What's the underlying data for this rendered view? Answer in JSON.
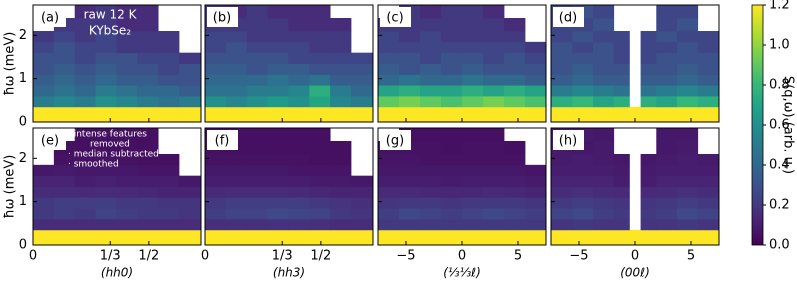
{
  "chart_data": [
    {
      "type": "heatmap",
      "label": "(a)",
      "annotations": [
        "raw 12 K",
        "KYbSe₂"
      ],
      "ylabel": "ħω (meV)",
      "xlim": [
        0,
        0.725
      ],
      "ylim": [
        0,
        2.7
      ],
      "xticks": [
        0,
        0.3333,
        0.5
      ],
      "yticks": [
        0,
        1,
        2
      ],
      "x_edges": [
        0,
        0.09,
        0.18,
        0.27,
        0.36,
        0.45,
        0.54,
        0.63,
        0.725
      ],
      "y_edges": [
        0,
        0.35,
        0.6,
        0.85,
        1.1,
        1.35,
        1.6,
        1.85,
        2.1,
        2.4,
        2.7
      ],
      "z": [
        [
          1.2,
          1.2,
          1.2,
          1.2,
          1.2,
          1.2,
          1.2,
          1.2
        ],
        [
          0.5,
          0.55,
          0.5,
          0.6,
          0.55,
          0.5,
          0.45,
          0.5
        ],
        [
          0.4,
          0.45,
          0.4,
          0.5,
          0.45,
          0.4,
          0.4,
          0.35
        ],
        [
          0.35,
          0.4,
          0.35,
          0.4,
          0.35,
          0.35,
          0.3,
          0.3
        ],
        [
          0.3,
          0.35,
          0.3,
          0.35,
          0.3,
          0.3,
          0.25,
          0.3
        ],
        [
          0.3,
          0.3,
          0.25,
          0.3,
          0.3,
          0.25,
          0.25,
          0.2
        ],
        [
          0.25,
          0.3,
          0.25,
          0.25,
          0.2,
          0.2,
          0.2,
          null
        ],
        [
          0.2,
          0.25,
          0.2,
          0.25,
          0.2,
          0.2,
          0.2,
          null
        ],
        [
          null,
          0.2,
          0.2,
          0.2,
          0.15,
          0.15,
          null,
          null
        ],
        [
          null,
          null,
          0.15,
          0.2,
          0.15,
          0.15,
          null,
          null
        ]
      ]
    },
    {
      "type": "heatmap",
      "label": "(b)",
      "xlim": [
        0,
        0.725
      ],
      "ylim": [
        0,
        2.7
      ],
      "xticks": [
        0,
        0.3333,
        0.5
      ],
      "yticks": [
        0,
        1,
        2
      ],
      "x_edges": [
        0,
        0.09,
        0.18,
        0.27,
        0.36,
        0.45,
        0.54,
        0.63,
        0.725
      ],
      "y_edges": [
        0,
        0.35,
        0.6,
        0.85,
        1.1,
        1.35,
        1.6,
        1.85,
        2.1,
        2.4,
        2.7
      ],
      "z": [
        [
          1.2,
          1.2,
          1.2,
          1.2,
          1.2,
          1.2,
          1.2,
          1.2
        ],
        [
          0.6,
          0.55,
          0.6,
          0.65,
          0.6,
          0.7,
          0.55,
          0.5
        ],
        [
          0.45,
          0.45,
          0.5,
          0.5,
          0.55,
          0.75,
          0.5,
          0.4
        ],
        [
          0.4,
          0.4,
          0.4,
          0.45,
          0.4,
          0.45,
          0.35,
          0.35
        ],
        [
          0.35,
          0.35,
          0.3,
          0.35,
          0.35,
          0.3,
          0.3,
          0.3
        ],
        [
          0.3,
          0.3,
          0.3,
          0.3,
          0.25,
          0.25,
          0.25,
          0.25
        ],
        [
          0.25,
          0.3,
          0.25,
          0.25,
          0.25,
          0.2,
          0.2,
          null
        ],
        [
          0.25,
          0.25,
          0.2,
          0.2,
          0.2,
          0.2,
          0.2,
          null
        ],
        [
          0.2,
          0.2,
          0.2,
          0.2,
          0.15,
          0.15,
          0.15,
          null
        ],
        [
          0.2,
          0.15,
          0.2,
          0.15,
          0.15,
          0.15,
          null,
          null
        ]
      ]
    },
    {
      "type": "heatmap",
      "label": "(c)",
      "xlim": [
        -7.5,
        7.5
      ],
      "ylim": [
        0,
        2.7
      ],
      "xticks": [
        -5,
        0,
        5
      ],
      "yticks": [
        0,
        1,
        2
      ],
      "x_edges": [
        -7.5,
        -5.625,
        -3.75,
        -1.875,
        0,
        1.875,
        3.75,
        5.625,
        7.5
      ],
      "y_edges": [
        0,
        0.35,
        0.6,
        0.85,
        1.1,
        1.35,
        1.6,
        1.85,
        2.1,
        2.4,
        2.7
      ],
      "z": [
        [
          1.2,
          1.2,
          1.2,
          1.2,
          1.2,
          1.2,
          1.2,
          1.2
        ],
        [
          0.9,
          0.95,
          0.9,
          0.85,
          0.9,
          0.95,
          0.9,
          0.85
        ],
        [
          0.7,
          0.75,
          0.7,
          0.7,
          0.75,
          0.7,
          0.75,
          0.7
        ],
        [
          0.4,
          0.45,
          0.4,
          0.4,
          0.45,
          0.4,
          0.4,
          0.35
        ],
        [
          0.35,
          0.3,
          0.35,
          0.3,
          0.35,
          0.3,
          0.3,
          0.3
        ],
        [
          0.3,
          0.3,
          0.25,
          0.3,
          0.3,
          0.25,
          0.3,
          0.25
        ],
        [
          0.25,
          0.25,
          0.25,
          0.25,
          0.25,
          0.25,
          0.25,
          0.2
        ],
        [
          0.25,
          0.2,
          0.25,
          0.2,
          0.2,
          0.2,
          0.2,
          null
        ],
        [
          0.2,
          0.2,
          0.2,
          0.2,
          0.2,
          0.2,
          0.15,
          null
        ],
        [
          null,
          0.2,
          0.15,
          0.2,
          0.2,
          0.15,
          null,
          null
        ]
      ]
    },
    {
      "type": "heatmap",
      "label": "(d)",
      "xlim": [
        -7.5,
        7.5
      ],
      "ylim": [
        0,
        2.7
      ],
      "xticks": [
        -5,
        0,
        5
      ],
      "yticks": [
        0,
        1,
        2
      ],
      "x_edges": [
        -7.5,
        -5.6,
        -3.75,
        -1.9,
        -0.5,
        0.5,
        1.9,
        3.75,
        5.6,
        7.5
      ],
      "y_edges": [
        0,
        0.35,
        0.6,
        0.85,
        1.1,
        1.35,
        1.6,
        1.85,
        2.1,
        2.4,
        2.7
      ],
      "z": [
        [
          1.2,
          1.2,
          1.2,
          1.2,
          1.2,
          1.2,
          1.2,
          1.2,
          1.2
        ],
        [
          0.75,
          0.8,
          0.7,
          0.75,
          null,
          0.75,
          0.7,
          0.8,
          0.75
        ],
        [
          0.5,
          0.55,
          0.5,
          0.45,
          null,
          0.45,
          0.5,
          0.55,
          0.5
        ],
        [
          0.35,
          0.4,
          0.35,
          0.35,
          null,
          0.35,
          0.35,
          0.4,
          0.35
        ],
        [
          0.3,
          0.35,
          0.3,
          0.3,
          null,
          0.3,
          0.3,
          0.35,
          0.3
        ],
        [
          0.3,
          0.3,
          0.3,
          0.25,
          null,
          0.25,
          0.3,
          0.3,
          0.3
        ],
        [
          0.3,
          0.25,
          0.3,
          0.25,
          null,
          0.25,
          0.25,
          0.3,
          0.25
        ],
        [
          0.25,
          0.3,
          0.25,
          0.25,
          null,
          0.25,
          0.3,
          0.25,
          0.25
        ],
        [
          0.25,
          0.25,
          0.3,
          null,
          null,
          null,
          0.25,
          0.3,
          null
        ],
        [
          0.25,
          0.3,
          0.25,
          null,
          null,
          null,
          0.25,
          0.25,
          null
        ]
      ]
    },
    {
      "type": "heatmap",
      "label": "(e)",
      "annotations": [
        "· intense features",
        "removed",
        "· median subtracted",
        "· smoothed"
      ],
      "ylabel": "ħω (meV)",
      "xlabel": "(hh0)",
      "xlim": [
        0,
        0.725
      ],
      "ylim": [
        0,
        2.7
      ],
      "xticks": [
        0,
        {
          "value": 0.3333,
          "label": "1/3"
        },
        {
          "value": 0.5,
          "label": "1/2"
        }
      ],
      "yticks": [
        0,
        1,
        2
      ],
      "x_edges": [
        0,
        0.09,
        0.18,
        0.27,
        0.36,
        0.45,
        0.54,
        0.63,
        0.725
      ],
      "y_edges": [
        0,
        0.35,
        0.6,
        0.85,
        1.1,
        1.35,
        1.6,
        1.85,
        2.1,
        2.4,
        2.7
      ],
      "z": [
        [
          1.2,
          1.2,
          1.2,
          1.2,
          1.2,
          1.2,
          1.2,
          1.2
        ],
        [
          0.15,
          0.15,
          0.15,
          0.15,
          0.15,
          0.15,
          0.15,
          0.15
        ],
        [
          0.2,
          0.22,
          0.2,
          0.24,
          0.22,
          0.2,
          0.2,
          0.18
        ],
        [
          0.2,
          0.22,
          0.22,
          0.22,
          0.2,
          0.2,
          0.18,
          0.18
        ],
        [
          0.15,
          0.15,
          0.14,
          0.15,
          0.14,
          0.13,
          0.12,
          0.12
        ],
        [
          0.12,
          0.12,
          0.1,
          0.11,
          0.1,
          0.1,
          0.1,
          0.08
        ],
        [
          0.08,
          0.09,
          0.08,
          0.08,
          0.08,
          0.07,
          0.07,
          null
        ],
        [
          null,
          0.06,
          0.06,
          0.06,
          0.06,
          0.05,
          0.05,
          null
        ],
        [
          null,
          0.05,
          0.05,
          0.05,
          0.05,
          0.05,
          null,
          null
        ],
        [
          null,
          null,
          0.05,
          0.05,
          0.05,
          0.05,
          null,
          null
        ]
      ]
    },
    {
      "type": "heatmap",
      "label": "(f)",
      "xlabel": "(hh3)",
      "xlim": [
        0,
        0.725
      ],
      "ylim": [
        0,
        2.7
      ],
      "xticks": [
        0,
        {
          "value": 0.3333,
          "label": "1/3"
        },
        {
          "value": 0.5,
          "label": "1/2"
        }
      ],
      "yticks": [
        0,
        1,
        2
      ],
      "x_edges": [
        0,
        0.09,
        0.18,
        0.27,
        0.36,
        0.45,
        0.54,
        0.63,
        0.725
      ],
      "y_edges": [
        0,
        0.35,
        0.6,
        0.85,
        1.1,
        1.35,
        1.6,
        1.85,
        2.1,
        2.4,
        2.7
      ],
      "z": [
        [
          1.2,
          1.2,
          1.2,
          1.2,
          1.2,
          1.2,
          1.2,
          1.2
        ],
        [
          0.16,
          0.16,
          0.16,
          0.17,
          0.17,
          0.16,
          0.15,
          0.15
        ],
        [
          0.22,
          0.24,
          0.24,
          0.26,
          0.25,
          0.24,
          0.2,
          0.18
        ],
        [
          0.2,
          0.22,
          0.22,
          0.22,
          0.22,
          0.2,
          0.18,
          0.16
        ],
        [
          0.14,
          0.15,
          0.15,
          0.15,
          0.14,
          0.13,
          0.12,
          0.12
        ],
        [
          0.1,
          0.1,
          0.1,
          0.1,
          0.1,
          0.09,
          0.09,
          0.08
        ],
        [
          0.08,
          0.08,
          0.08,
          0.08,
          0.07,
          0.07,
          0.07,
          null
        ],
        [
          0.06,
          0.06,
          0.06,
          0.06,
          0.06,
          0.05,
          0.05,
          null
        ],
        [
          0.05,
          0.05,
          0.05,
          0.05,
          0.05,
          0.05,
          0.05,
          null
        ],
        [
          0.05,
          0.05,
          0.05,
          0.05,
          0.05,
          0.05,
          null,
          null
        ]
      ]
    },
    {
      "type": "heatmap",
      "label": "(g)",
      "xlabel": "(⅓⅓ℓ)",
      "xlim": [
        -7.5,
        7.5
      ],
      "ylim": [
        0,
        2.7
      ],
      "xticks": [
        {
          "value": -5,
          "label": "−5"
        },
        0,
        5
      ],
      "yticks": [
        0,
        1,
        2
      ],
      "x_edges": [
        -7.5,
        -5.625,
        -3.75,
        -1.875,
        0,
        1.875,
        3.75,
        5.625,
        7.5
      ],
      "y_edges": [
        0,
        0.35,
        0.6,
        0.85,
        1.1,
        1.35,
        1.6,
        1.85,
        2.1,
        2.4,
        2.7
      ],
      "z": [
        [
          1.2,
          1.2,
          1.2,
          1.2,
          1.2,
          1.2,
          1.2,
          1.2
        ],
        [
          0.2,
          0.2,
          0.2,
          0.2,
          0.2,
          0.2,
          0.2,
          0.2
        ],
        [
          0.22,
          0.26,
          0.24,
          0.22,
          0.24,
          0.26,
          0.24,
          0.22
        ],
        [
          0.18,
          0.2,
          0.2,
          0.18,
          0.2,
          0.2,
          0.2,
          0.18
        ],
        [
          0.14,
          0.14,
          0.13,
          0.13,
          0.13,
          0.14,
          0.13,
          0.12
        ],
        [
          0.1,
          0.1,
          0.1,
          0.09,
          0.1,
          0.1,
          0.1,
          0.09
        ],
        [
          0.08,
          0.08,
          0.08,
          0.08,
          0.08,
          0.08,
          0.08,
          0.07
        ],
        [
          0.07,
          0.07,
          0.06,
          0.06,
          0.06,
          0.06,
          0.06,
          null
        ],
        [
          0.06,
          0.06,
          0.06,
          0.05,
          0.06,
          0.06,
          0.05,
          null
        ],
        [
          null,
          0.05,
          0.05,
          0.05,
          0.05,
          0.05,
          null,
          null
        ]
      ]
    },
    {
      "type": "heatmap",
      "label": "(h)",
      "xlabel": "(00ℓ)",
      "xlim": [
        -7.5,
        7.5
      ],
      "ylim": [
        0,
        2.7
      ],
      "xticks": [
        {
          "value": -5,
          "label": "−5"
        },
        0,
        5
      ],
      "yticks": [
        0,
        1,
        2
      ],
      "x_edges": [
        -7.5,
        -5.6,
        -3.75,
        -1.9,
        -0.5,
        0.5,
        1.9,
        3.75,
        5.6,
        7.5
      ],
      "y_edges": [
        0,
        0.35,
        0.6,
        0.85,
        1.1,
        1.35,
        1.6,
        1.85,
        2.1,
        2.4,
        2.7
      ],
      "z": [
        [
          1.2,
          1.2,
          1.2,
          1.2,
          1.2,
          1.2,
          1.2,
          1.2,
          1.2
        ],
        [
          0.18,
          0.2,
          0.18,
          0.18,
          null,
          0.18,
          0.18,
          0.2,
          0.18
        ],
        [
          0.24,
          0.26,
          0.22,
          0.2,
          null,
          0.2,
          0.22,
          0.26,
          0.24
        ],
        [
          0.2,
          0.22,
          0.2,
          0.18,
          null,
          0.18,
          0.2,
          0.22,
          0.2
        ],
        [
          0.15,
          0.16,
          0.15,
          0.14,
          null,
          0.14,
          0.15,
          0.16,
          0.15
        ],
        [
          0.12,
          0.12,
          0.12,
          0.1,
          null,
          0.1,
          0.12,
          0.12,
          0.12
        ],
        [
          0.1,
          0.1,
          0.1,
          0.09,
          null,
          0.09,
          0.1,
          0.1,
          0.1
        ],
        [
          0.09,
          0.1,
          0.09,
          0.08,
          null,
          0.08,
          0.09,
          0.1,
          0.09
        ],
        [
          0.09,
          0.08,
          0.09,
          null,
          null,
          null,
          0.08,
          0.09,
          null
        ],
        [
          0.08,
          0.09,
          0.08,
          null,
          null,
          null,
          0.08,
          0.08,
          null
        ]
      ]
    }
  ],
  "colorbar": {
    "label": "S(q,ω) (arb. u.)",
    "colormap": "viridis",
    "lim": [
      0,
      1.2
    ],
    "ticks": [
      {
        "value": 0,
        "label": "0.0"
      },
      0.2,
      0.4,
      0.6,
      0.8,
      {
        "value": 1,
        "label": "1.0"
      },
      1.2
    ]
  }
}
